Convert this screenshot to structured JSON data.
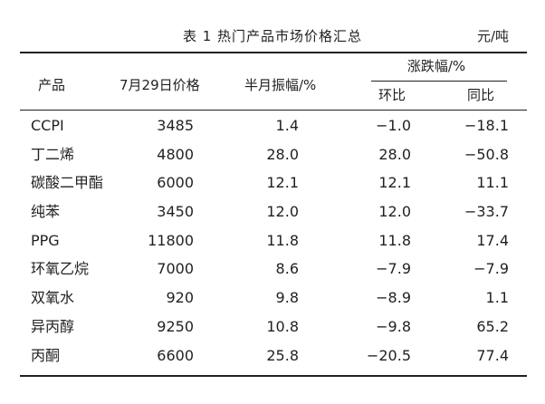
{
  "caption": {
    "title": "表 1  热门产品市场价格汇总",
    "unit": "元/吨"
  },
  "headers": {
    "product": "产品",
    "price": "7月29日价格",
    "swing": "半月振幅/%",
    "change": "涨跌幅/%",
    "mom": "环比",
    "yoy": "同比"
  },
  "rows": [
    {
      "name": "CCPI",
      "price": "3485",
      "swing": "1.4",
      "mom": "−1.0",
      "yoy": "−18.1"
    },
    {
      "name": "丁二烯",
      "price": "4800",
      "swing": "28.0",
      "mom": "28.0",
      "yoy": "−50.8"
    },
    {
      "name": "碳酸二甲酯",
      "price": "6000",
      "swing": "12.1",
      "mom": "12.1",
      "yoy": "11.1"
    },
    {
      "name": "纯苯",
      "price": "3450",
      "swing": "12.0",
      "mom": "12.0",
      "yoy": "−33.7"
    },
    {
      "name": "PPG",
      "price": "11800",
      "swing": "11.8",
      "mom": "11.8",
      "yoy": "17.4"
    },
    {
      "name": "环氧乙烷",
      "price": "7000",
      "swing": "8.6",
      "mom": "−7.9",
      "yoy": "−7.9"
    },
    {
      "name": "双氧水",
      "price": "920",
      "swing": "9.8",
      "mom": "−8.9",
      "yoy": "1.1"
    },
    {
      "name": "异丙醇",
      "price": "9250",
      "swing": "10.8",
      "mom": "−9.8",
      "yoy": "65.2"
    },
    {
      "name": "丙酮",
      "price": "6600",
      "swing": "25.8",
      "mom": "−20.5",
      "yoy": "77.4"
    }
  ]
}
